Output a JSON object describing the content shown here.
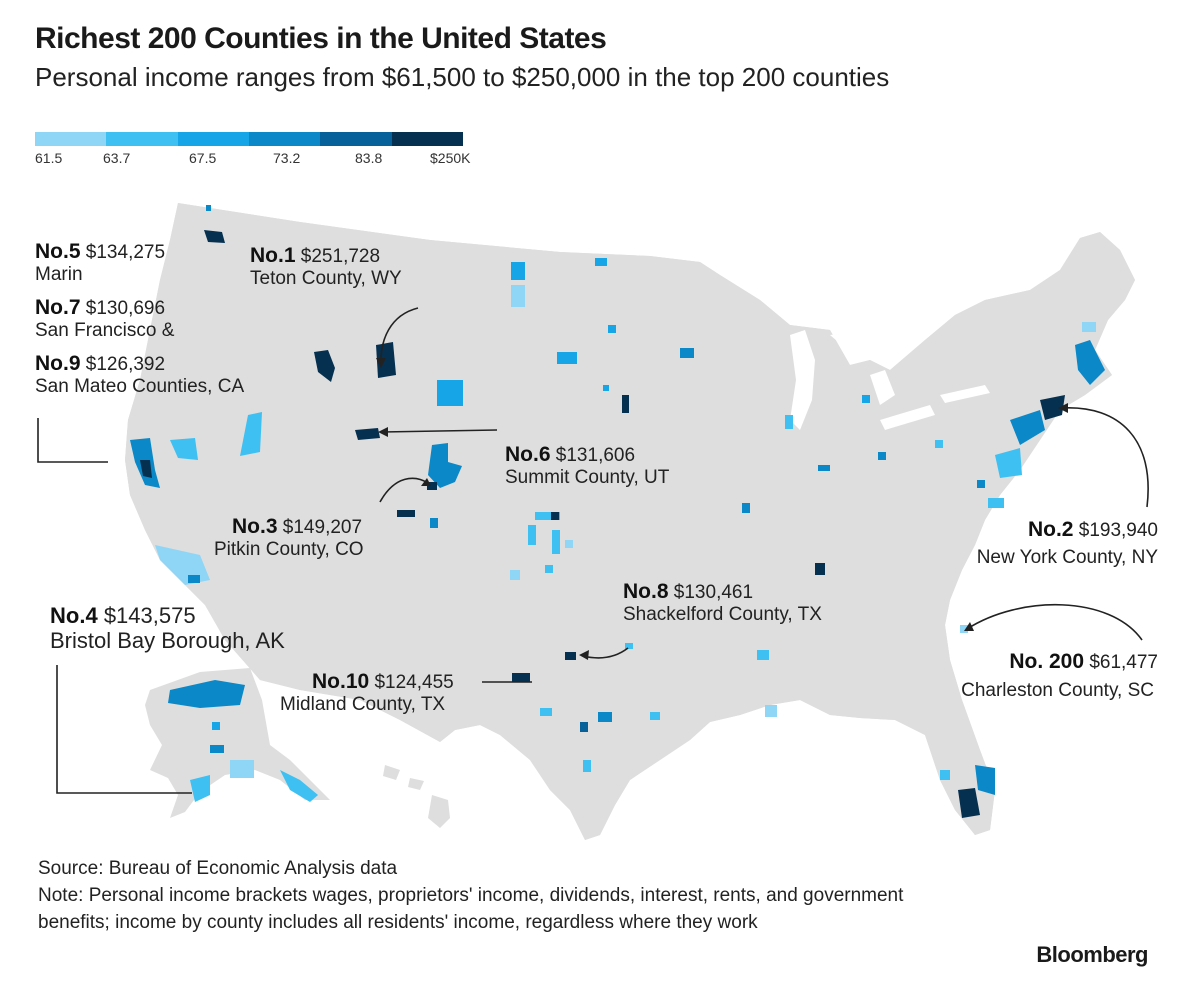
{
  "title": "Richest 200 Counties in the United States",
  "subtitle": "Personal income ranges from $61,500 to $250,000 in the top 200 counties",
  "legend": {
    "colors": [
      "#8fd5f6",
      "#3ec0f2",
      "#16a6e8",
      "#0a88c8",
      "#06609a",
      "#06304f"
    ],
    "labels": [
      "61.5",
      "63.7",
      "67.5",
      "73.2",
      "83.8",
      "$250K"
    ]
  },
  "annotations": {
    "n5_rank": "No.5",
    "n5_value": "$134,275",
    "n5_name": "Marin",
    "n7_rank": "No.7",
    "n7_value": "$130,696",
    "n7_name": "San Francisco &",
    "n9_rank": "No.9",
    "n9_value": "$126,392",
    "n9_name": "San Mateo Counties, CA",
    "n1_rank": "No.1",
    "n1_value": "$251,728",
    "n1_name": "Teton County, WY",
    "n6_rank": "No.6",
    "n6_value": "$131,606",
    "n6_name": "Summit County, UT",
    "n3_rank": "No.3",
    "n3_value": "$149,207",
    "n3_name": "Pitkin County, CO",
    "n4_rank": "No.4",
    "n4_value": "$143,575",
    "n4_name": "Bristol Bay Borough, AK",
    "n10_rank": "No.10",
    "n10_value": "$124,455",
    "n10_name": "Midland County, TX",
    "n8_rank": "No.8",
    "n8_value": "$130,461",
    "n8_name": "Shackelford County, TX",
    "n2_rank": "No.2",
    "n2_value": "$193,940",
    "n2_name": "New York County, NY",
    "n200_rank": "No. 200",
    "n200_value": "$61,477",
    "n200_name": "Charleston County, SC"
  },
  "source": "Source: Bureau of Economic Analysis data",
  "note": "Note: Personal income brackets wages, proprietors' income, dividends, interest, rents, and government benefits; income by county includes all residents' income, regardless where they work",
  "brand": "Bloomberg"
}
